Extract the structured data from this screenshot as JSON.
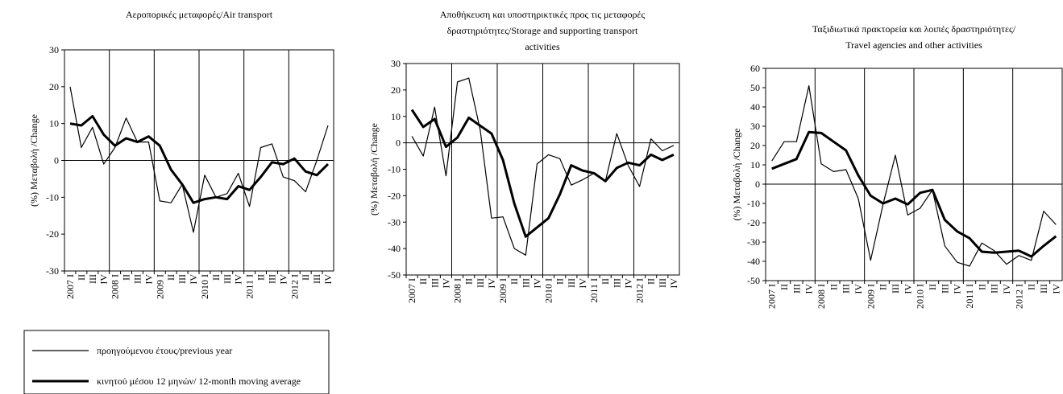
{
  "chart_data": [
    {
      "type": "line",
      "title_lines": [
        "Αεροπορικές μεταφορές/Air transport"
      ],
      "ylabel": "(%) Μεταβολή /Change",
      "ylim": [
        -30,
        30
      ],
      "yticks": [
        -30,
        -20,
        -10,
        0,
        10,
        20,
        30
      ],
      "grid": "vertical lines at years",
      "x": [
        "2007 I",
        "II",
        "III",
        "IV",
        "2008 I",
        "II",
        "III",
        "IV",
        "2009 I",
        "II",
        "III",
        "IV",
        "2010 I",
        "II",
        "III",
        "IV",
        "2011 I",
        "II",
        "III",
        "IV",
        "2012 I",
        "II",
        "III",
        "IV"
      ],
      "series": [
        {
          "values": [
            20,
            3.5,
            9,
            -1,
            3.5,
            11.5,
            5,
            5,
            -11,
            -11.5,
            -6.5,
            -19.5,
            -4,
            -10,
            -9,
            -3.5,
            -12.5,
            3.5,
            4.5,
            -4.5,
            -5.5,
            -8.5,
            0,
            9.5
          ]
        },
        {
          "values": [
            10,
            9.5,
            12,
            7,
            4,
            6,
            5,
            6.5,
            4,
            -2.5,
            -6.5,
            -11.5,
            -10.5,
            -10,
            -10.5,
            -7,
            -8,
            -4.5,
            -0.5,
            -1,
            0.5,
            -3,
            -4,
            -1
          ]
        }
      ]
    },
    {
      "type": "line",
      "title_lines": [
        "Αποθήκευση και υποστηρικτικές προς τις μεταφορές",
        "δραστηριότητες/Storage and supporting transport",
        "activities"
      ],
      "ylabel": "(%) Μεταβολή /Change",
      "ylim": [
        -50,
        30
      ],
      "yticks": [
        -50,
        -40,
        -30,
        -20,
        -10,
        0,
        10,
        20,
        30
      ],
      "grid": "vertical lines at years",
      "x": [
        "2007 I",
        "II",
        "III",
        "IV",
        "2008 I",
        "II",
        "III",
        "IV",
        "2009 I",
        "II",
        "III",
        "IV",
        "2010 I",
        "II",
        "III",
        "IV",
        "2011 I",
        "II",
        "III",
        "IV",
        "2012 I",
        "II",
        "III",
        "IV"
      ],
      "series": [
        {
          "values": [
            2.5,
            -5,
            13.5,
            -12.5,
            23,
            24.5,
            5,
            -28.5,
            -28,
            -40,
            -42.5,
            -8,
            -4.5,
            -6,
            -16,
            -14,
            -11.5,
            -14.5,
            3.5,
            -8.5,
            -16.5,
            1.5,
            -3,
            -1
          ]
        },
        {
          "values": [
            12.5,
            6,
            9,
            -1.5,
            2,
            9.5,
            6.5,
            3.5,
            -6.5,
            -23,
            -35.5,
            -32,
            -28.5,
            -19.5,
            -8.5,
            -10.5,
            -11.5,
            -14.5,
            -9.5,
            -7.5,
            -8.5,
            -4.5,
            -6.5,
            -4.5
          ]
        }
      ]
    },
    {
      "type": "line",
      "title_lines": [
        "Ταξιδιωτικά πρακτορεία και λοιπές δραστηριότητες/",
        "Travel agencies and other activities"
      ],
      "ylabel": "(%) Μεταβολή /Change",
      "ylim": [
        -50,
        60
      ],
      "yticks": [
        -50,
        -40,
        -30,
        -20,
        -10,
        0,
        10,
        20,
        30,
        40,
        50,
        60
      ],
      "grid": "vertical lines at years",
      "x": [
        "2007 I",
        "II",
        "III",
        "IV",
        "2008 I",
        "II",
        "III",
        "IV",
        "2009 I",
        "II",
        "III",
        "IV",
        "2010 I",
        "II",
        "III",
        "IV",
        "2011 I",
        "II",
        "III",
        "IV",
        "2012 I",
        "II",
        "III",
        "IV"
      ],
      "series": [
        {
          "values": [
            12,
            22,
            22,
            51,
            10.5,
            6.5,
            7.5,
            -7.5,
            -39.5,
            -10.5,
            15,
            -16,
            -12.5,
            -3,
            -32,
            -40.5,
            -42.5,
            -30.5,
            -34.5,
            -41.5,
            -37,
            -39.5,
            -14,
            -21
          ]
        },
        {
          "values": [
            8,
            10.5,
            13,
            27,
            26.5,
            22,
            17.5,
            4.5,
            -6,
            -10,
            -7.5,
            -10.5,
            -4.5,
            -3,
            -18.5,
            -24.5,
            -28,
            -35,
            -35.5,
            -35,
            -34.5,
            -37.5,
            -32,
            -27
          ]
        }
      ]
    }
  ],
  "legend": {
    "items": [
      {
        "label": "προηγούμενου έτους/previous year",
        "style": "thin"
      },
      {
        "label": "κινητού μέσου 12 μηνών/ 12-month moving average",
        "style": "thick"
      }
    ]
  }
}
